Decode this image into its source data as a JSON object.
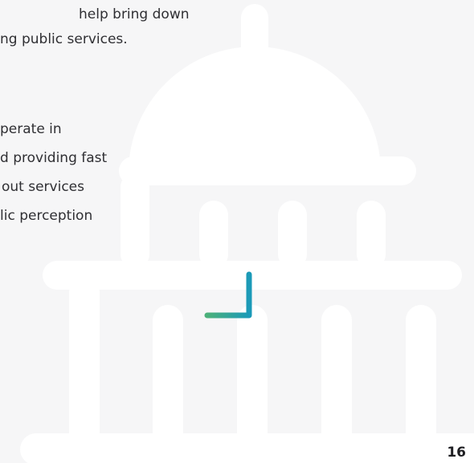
{
  "paragraphs": [
    {
      "lines": [
        "help bring down",
        "ng public services."
      ]
    },
    {
      "lines": [
        "perate in",
        "d providing fast",
        "out services",
        "lic perception"
      ]
    }
  ],
  "page_number": "16"
}
